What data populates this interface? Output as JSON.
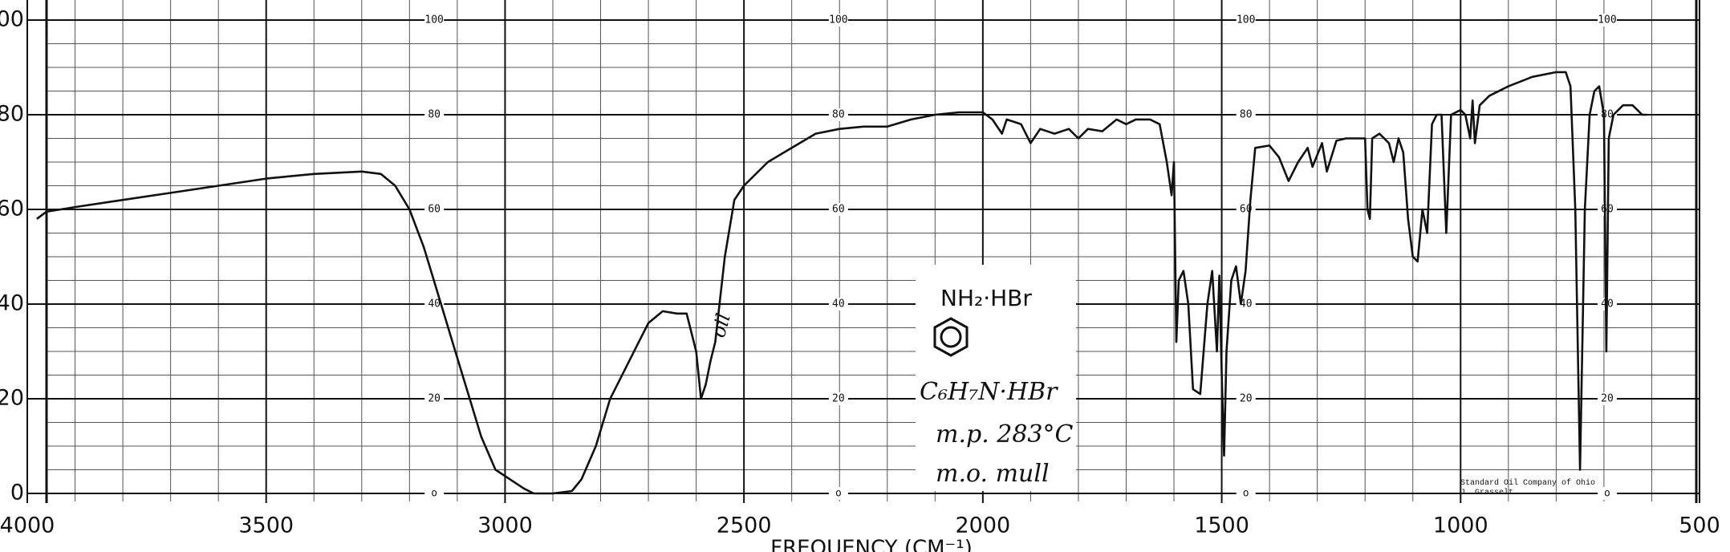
{
  "chart_data": {
    "type": "line",
    "x_label": "FREQUENCY (CM⁻¹)",
    "xlim": [
      4000,
      500
    ],
    "ylim": [
      0,
      100
    ],
    "xticks": [
      4000,
      3500,
      3000,
      2500,
      2000,
      1500,
      1000,
      500
    ],
    "yticks": [
      0,
      20,
      40,
      60,
      80,
      100
    ],
    "x_minor_grid": [
      3900,
      3800,
      3700,
      3600,
      3400,
      3300,
      3200,
      3100,
      2900,
      2800,
      2700,
      2600,
      2400,
      2300,
      2200,
      2100,
      1900,
      1800,
      1700,
      1600,
      1400,
      1300,
      1200,
      1100,
      900,
      800,
      700,
      600
    ],
    "y_minor_grid": [
      5,
      10,
      15,
      25,
      30,
      35,
      45,
      50,
      55,
      65,
      70,
      75,
      85,
      90,
      95
    ],
    "inner_scale": [
      {
        "value": 0,
        "label": "o"
      },
      20,
      40,
      60,
      80,
      100
    ],
    "grid": true,
    "color": "#111111",
    "x": [
      3980,
      3960,
      3900,
      3800,
      3700,
      3600,
      3500,
      3400,
      3300,
      3260,
      3230,
      3200,
      3170,
      3140,
      3110,
      3080,
      3050,
      3020,
      2990,
      2960,
      2940,
      2900,
      2860,
      2840,
      2810,
      2780,
      2750,
      2720,
      2700,
      2670,
      2640,
      2620,
      2600,
      2590,
      2580,
      2570,
      2560,
      2540,
      2520,
      2500,
      2450,
      2400,
      2350,
      2300,
      2250,
      2200,
      2150,
      2100,
      2050,
      2000,
      1980,
      1960,
      1950,
      1920,
      1900,
      1880,
      1850,
      1820,
      1800,
      1780,
      1750,
      1720,
      1700,
      1680,
      1650,
      1630,
      1615,
      1605,
      1600,
      1595,
      1590,
      1580,
      1570,
      1560,
      1545,
      1530,
      1520,
      1510,
      1505,
      1500,
      1495,
      1490,
      1480,
      1470,
      1460,
      1450,
      1440,
      1430,
      1400,
      1380,
      1360,
      1340,
      1320,
      1310,
      1290,
      1280,
      1260,
      1240,
      1200,
      1195,
      1190,
      1185,
      1170,
      1150,
      1140,
      1130,
      1120,
      1110,
      1100,
      1090,
      1080,
      1070,
      1060,
      1050,
      1040,
      1030,
      1020,
      1000,
      990,
      980,
      975,
      970,
      960,
      940,
      900,
      850,
      800,
      780,
      770,
      760,
      750,
      740,
      730,
      720,
      710,
      700,
      695,
      690,
      680,
      660,
      640,
      620,
      610
    ],
    "values": [
      58,
      59.5,
      60.5,
      62,
      63.5,
      65,
      66.5,
      67.5,
      68,
      67.5,
      65,
      60,
      52,
      42,
      32,
      22,
      12,
      5,
      3,
      1,
      0,
      0,
      0.5,
      3,
      10,
      20,
      26,
      32,
      36,
      38.5,
      38,
      38,
      30,
      20,
      23,
      28,
      32,
      50,
      62,
      65,
      70,
      73,
      76,
      77,
      77.5,
      77.5,
      79,
      80,
      80.5,
      80.5,
      79,
      76,
      79,
      78,
      74,
      77,
      76,
      77,
      75,
      77,
      76.5,
      79,
      78,
      79,
      79,
      78,
      70,
      63,
      70,
      32,
      45,
      47,
      40,
      22,
      21,
      40,
      47,
      30,
      46,
      25,
      8,
      30,
      45,
      48,
      40,
      47,
      62,
      73,
      73.5,
      71,
      66,
      70,
      73,
      69,
      74,
      68,
      74.5,
      75,
      75,
      60,
      58,
      75,
      76,
      74,
      70,
      75,
      72,
      58,
      50,
      49,
      60,
      55,
      78,
      80,
      80,
      55,
      80,
      81,
      80,
      75,
      83,
      74,
      82,
      84,
      86,
      88,
      89,
      89,
      86,
      60,
      5,
      60,
      80,
      85,
      86,
      80,
      30,
      75,
      80,
      82,
      82,
      80,
      80
    ],
    "annotations": {
      "formula_top": "NH₂·HBr",
      "formula": "C₆H₇N·HBr",
      "melting_point": "m.p. 283°C",
      "medium": "m.o. mull",
      "oil_mark": "oil",
      "source_line1": "Standard Oil Company of Ohio",
      "source_line2": "J. Grasselt"
    }
  }
}
